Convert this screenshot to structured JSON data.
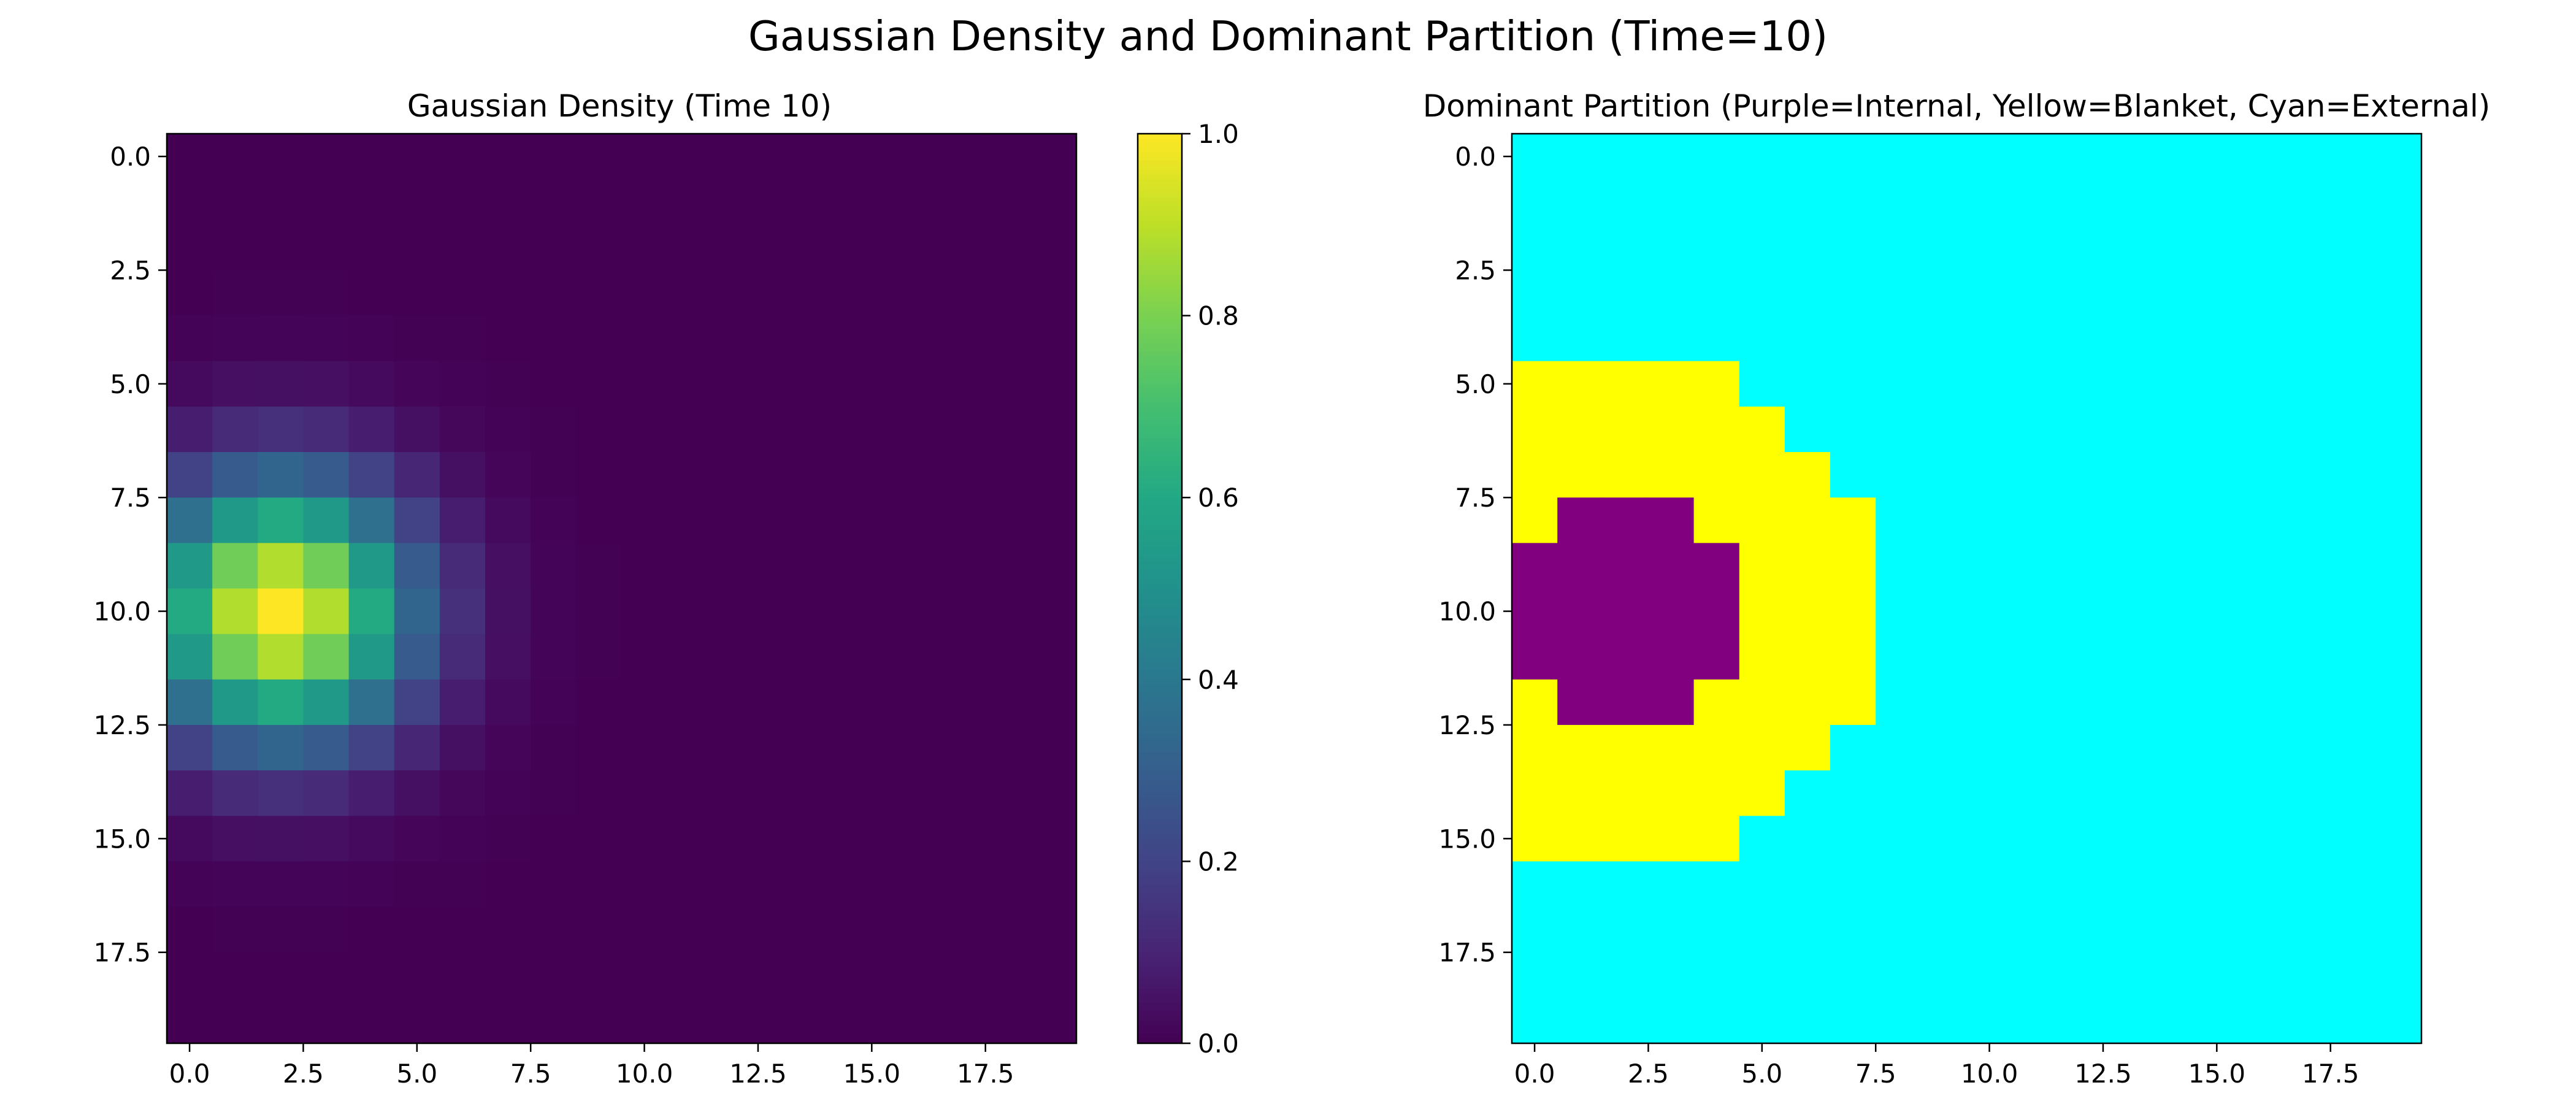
{
  "figure": {
    "suptitle": "Gaussian Density and Dominant Partition (Time=10)"
  },
  "chart_data": [
    {
      "type": "heatmap",
      "title": "Gaussian Density (Time 10)",
      "grid_size": [
        20,
        20
      ],
      "gaussian": {
        "center_row": 10,
        "center_col": 2,
        "sigma": 2
      },
      "xlim": [
        -0.5,
        19.5
      ],
      "ylim": [
        19.5,
        -0.5
      ],
      "x_ticks": [
        0.0,
        2.5,
        5.0,
        7.5,
        10.0,
        12.5,
        15.0,
        17.5
      ],
      "x_tick_labels": [
        "0.0",
        "2.5",
        "5.0",
        "7.5",
        "10.0",
        "12.5",
        "15.0",
        "17.5"
      ],
      "y_ticks": [
        0.0,
        2.5,
        5.0,
        7.5,
        10.0,
        12.5,
        15.0,
        17.5
      ],
      "y_tick_labels": [
        "0.0",
        "2.5",
        "5.0",
        "7.5",
        "10.0",
        "12.5",
        "15.0",
        "17.5"
      ],
      "colorbar": {
        "colormap": "viridis",
        "range": [
          0,
          1
        ],
        "ticks": [
          0.0,
          0.2,
          0.4,
          0.6,
          0.8,
          1.0
        ],
        "tick_labels": [
          "0.0",
          "0.2",
          "0.4",
          "0.6",
          "0.8",
          "1.0"
        ]
      }
    },
    {
      "type": "heatmap",
      "title": "Dominant Partition (Purple=Internal, Yellow=Blanket, Cyan=External)",
      "grid_size": [
        20,
        20
      ],
      "categories": [
        {
          "code": 0,
          "color": "#800080"
        },
        {
          "code": 1,
          "color": "#ffff00"
        },
        {
          "code": 2,
          "color": "#00ffff"
        }
      ],
      "default_code": 2,
      "row_runs": [
        {
          "row": 5,
          "segments": [
            {
              "code": 1,
              "from": 0,
              "to": 4
            }
          ]
        },
        {
          "row": 6,
          "segments": [
            {
              "code": 1,
              "from": 0,
              "to": 5
            }
          ]
        },
        {
          "row": 7,
          "segments": [
            {
              "code": 1,
              "from": 0,
              "to": 6
            }
          ]
        },
        {
          "row": 8,
          "segments": [
            {
              "code": 1,
              "from": 0,
              "to": 0
            },
            {
              "code": 0,
              "from": 1,
              "to": 3
            },
            {
              "code": 1,
              "from": 4,
              "to": 7
            }
          ]
        },
        {
          "row": 9,
          "segments": [
            {
              "code": 0,
              "from": 0,
              "to": 4
            },
            {
              "code": 1,
              "from": 5,
              "to": 7
            }
          ]
        },
        {
          "row": 10,
          "segments": [
            {
              "code": 0,
              "from": 0,
              "to": 4
            },
            {
              "code": 1,
              "from": 5,
              "to": 7
            }
          ]
        },
        {
          "row": 11,
          "segments": [
            {
              "code": 0,
              "from": 0,
              "to": 4
            },
            {
              "code": 1,
              "from": 5,
              "to": 7
            }
          ]
        },
        {
          "row": 12,
          "segments": [
            {
              "code": 1,
              "from": 0,
              "to": 0
            },
            {
              "code": 0,
              "from": 1,
              "to": 3
            },
            {
              "code": 1,
              "from": 4,
              "to": 7
            }
          ]
        },
        {
          "row": 13,
          "segments": [
            {
              "code": 1,
              "from": 0,
              "to": 6
            }
          ]
        },
        {
          "row": 14,
          "segments": [
            {
              "code": 1,
              "from": 0,
              "to": 5
            }
          ]
        },
        {
          "row": 15,
          "segments": [
            {
              "code": 1,
              "from": 0,
              "to": 4
            }
          ]
        }
      ],
      "xlim": [
        -0.5,
        19.5
      ],
      "ylim": [
        19.5,
        -0.5
      ],
      "x_ticks": [
        0.0,
        2.5,
        5.0,
        7.5,
        10.0,
        12.5,
        15.0,
        17.5
      ],
      "x_tick_labels": [
        "0.0",
        "2.5",
        "5.0",
        "7.5",
        "10.0",
        "12.5",
        "15.0",
        "17.5"
      ],
      "y_ticks": [
        0.0,
        2.5,
        5.0,
        7.5,
        10.0,
        12.5,
        15.0,
        17.5
      ],
      "y_tick_labels": [
        "0.0",
        "2.5",
        "5.0",
        "7.5",
        "10.0",
        "12.5",
        "15.0",
        "17.5"
      ]
    }
  ]
}
